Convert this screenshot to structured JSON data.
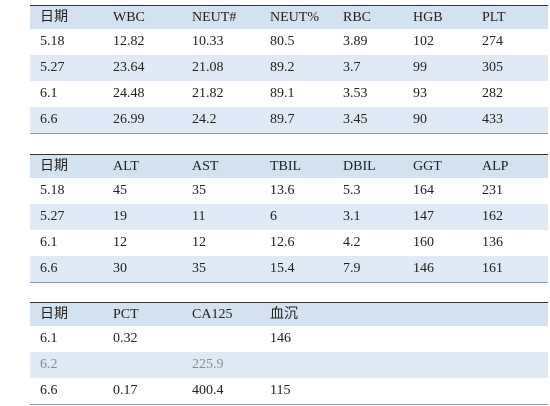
{
  "tables": [
    {
      "header": [
        "日期",
        "WBC",
        "NEUT#",
        "NEUT%",
        "RBC",
        "HGB",
        "PLT"
      ],
      "rows": [
        [
          "5.18",
          "12.82",
          "10.33",
          "80.5",
          "3.89",
          "102",
          "274"
        ],
        [
          "5.27",
          "23.64",
          "21.08",
          "89.2",
          "3.7",
          "99",
          "305"
        ],
        [
          "6.1",
          "24.48",
          "21.82",
          "89.1",
          "3.53",
          "93",
          "282"
        ],
        [
          "6.6",
          "26.99",
          "24.2",
          "89.7",
          "3.45",
          "90",
          "433"
        ]
      ]
    },
    {
      "header": [
        "日期",
        "ALT",
        "AST",
        "TBIL",
        "DBIL",
        "GGT",
        "ALP"
      ],
      "rows": [
        [
          "5.18",
          "45",
          "35",
          "13.6",
          "5.3",
          "164",
          "231"
        ],
        [
          "5.27",
          "19",
          "11",
          "6",
          "3.1",
          "147",
          "162"
        ],
        [
          "6.1",
          "12",
          "12",
          "12.6",
          "4.2",
          "160",
          "136"
        ],
        [
          "6.6",
          "30",
          "35",
          "15.4",
          "7.9",
          "146",
          "161"
        ]
      ]
    },
    {
      "header": [
        "日期",
        "PCT",
        "CA125",
        "血沉"
      ],
      "rows": [
        [
          "6.1",
          "0.32",
          null,
          "146"
        ],
        [
          "6.2",
          null,
          "225.9",
          null
        ],
        [
          "6.6",
          "0.17",
          "400.4",
          "115"
        ]
      ]
    }
  ]
}
